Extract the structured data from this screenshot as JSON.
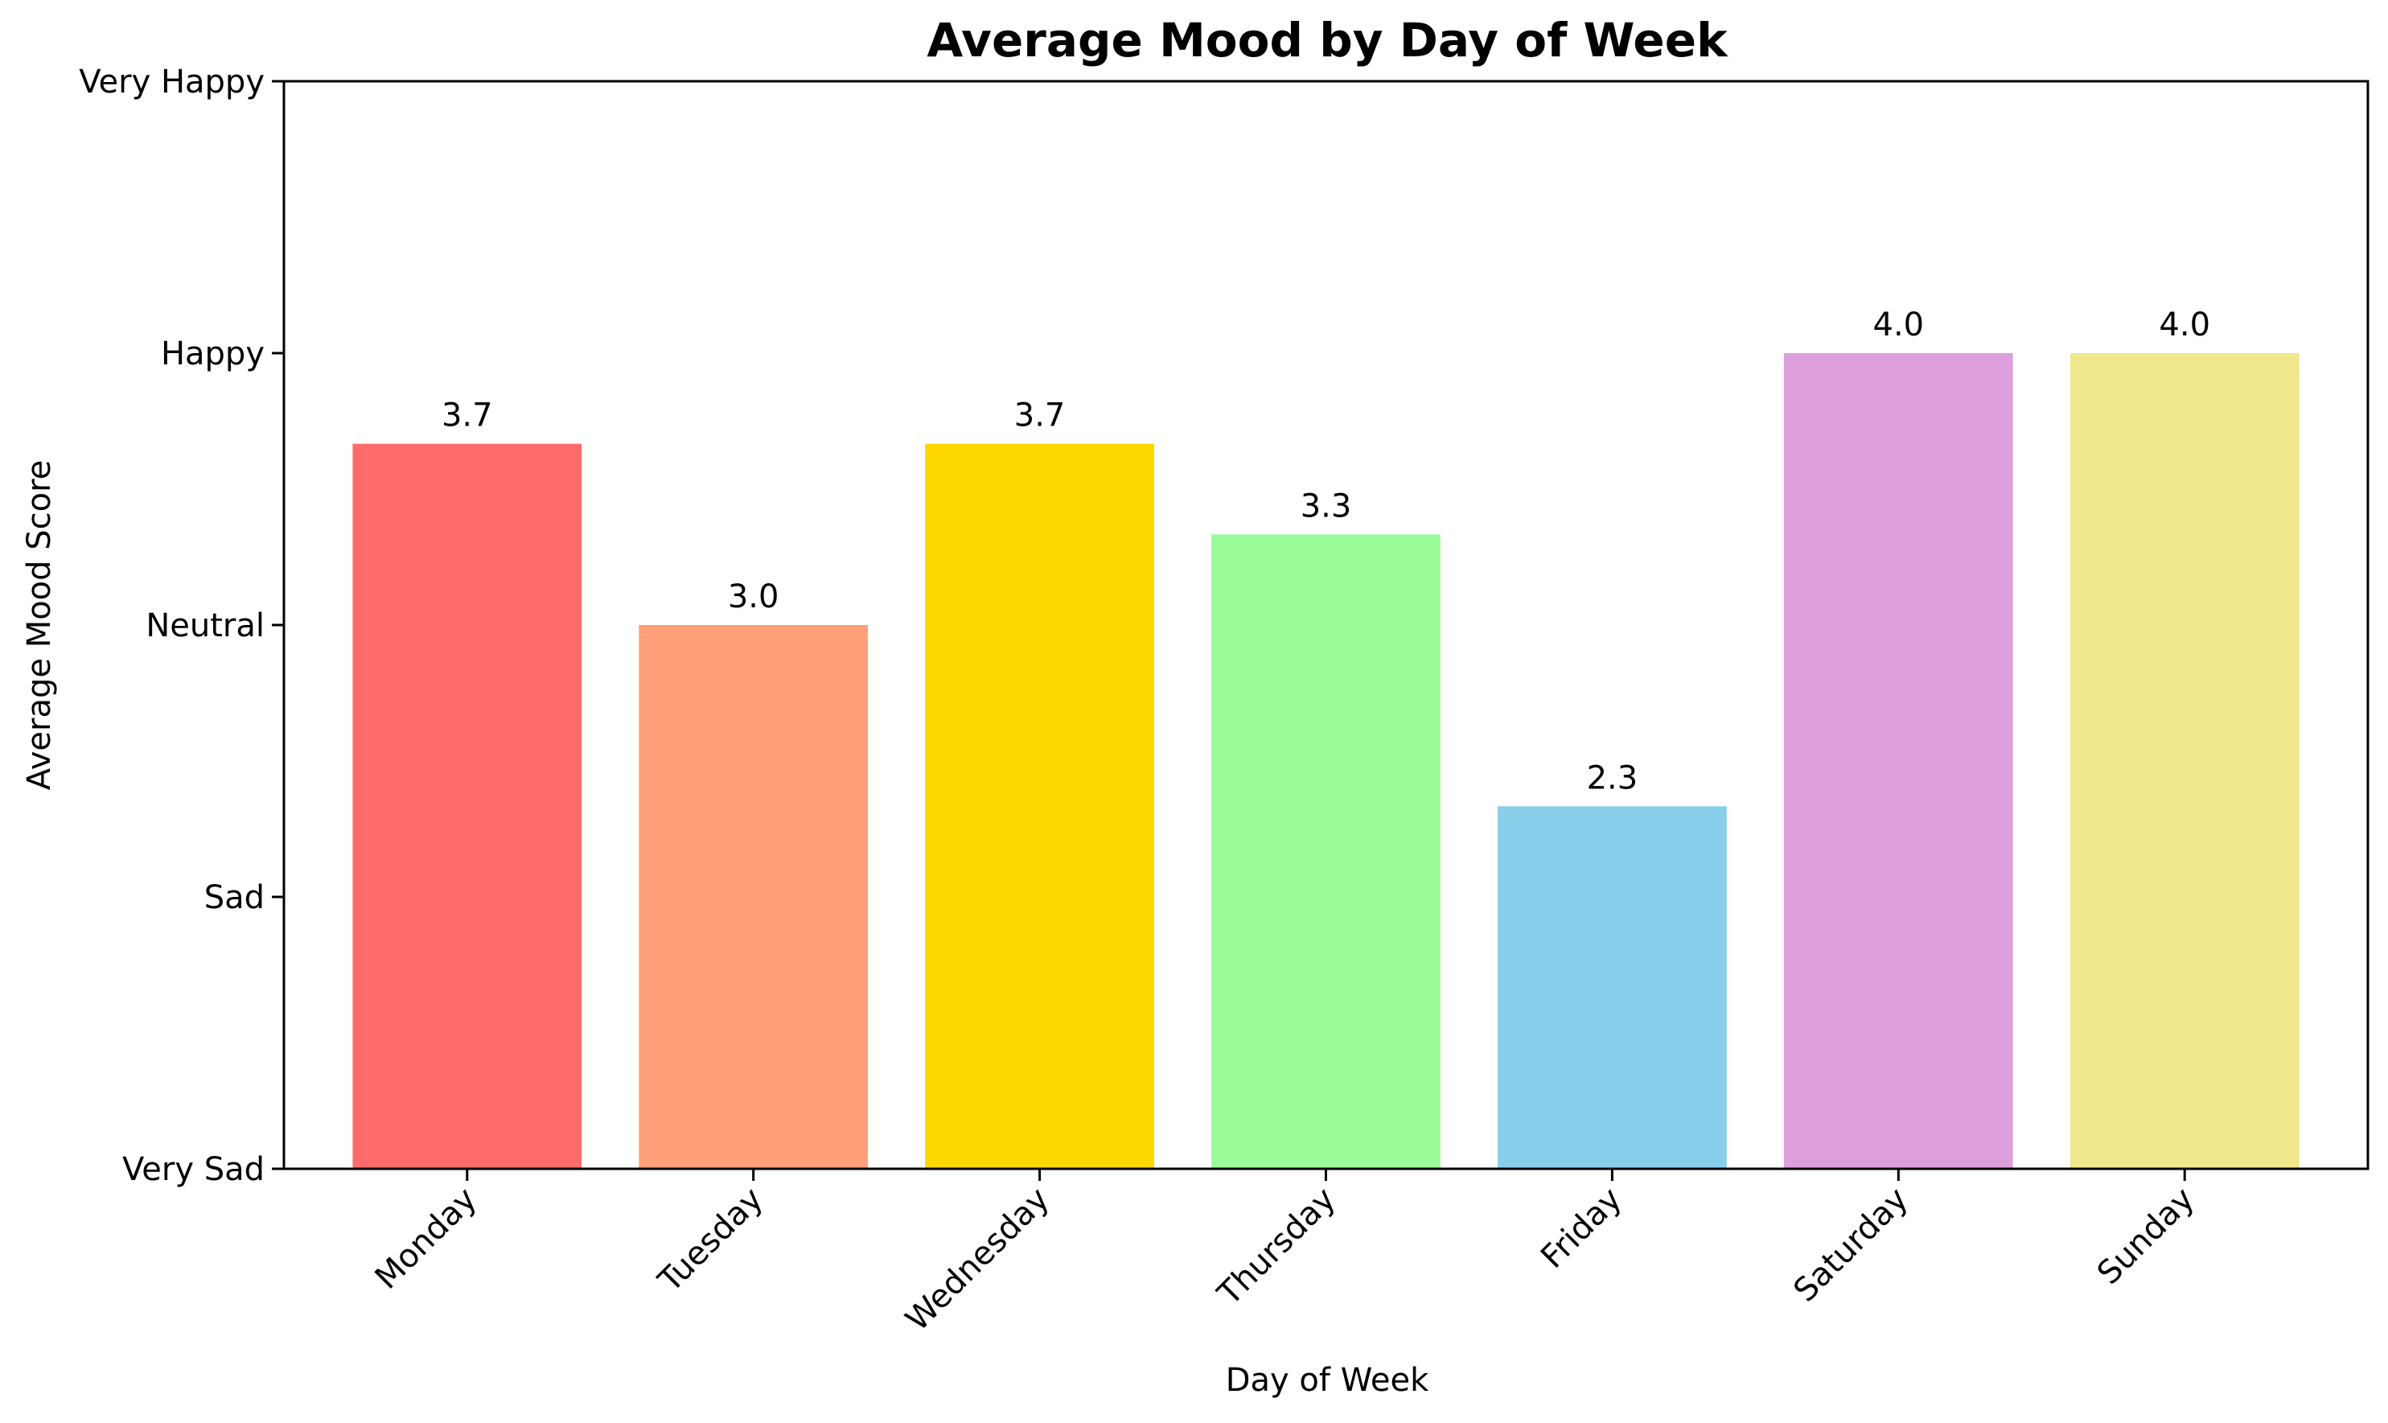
{
  "chart_data": {
    "type": "bar",
    "title": "Average Mood by Day of Week",
    "xlabel": "Day of Week",
    "ylabel": "Average Mood Score",
    "categories": [
      "Monday",
      "Tuesday",
      "Wednesday",
      "Thursday",
      "Friday",
      "Saturday",
      "Sunday"
    ],
    "values": [
      3.6667,
      3.0,
      3.6667,
      3.3333,
      2.3333,
      4.0,
      4.0
    ],
    "value_labels": [
      "3.7",
      "3.0",
      "3.7",
      "3.3",
      "2.3",
      "4.0",
      "4.0"
    ],
    "colors": [
      "#FF6B6B",
      "#FFA07A",
      "#FFD700",
      "#98FB98",
      "#87CEEB",
      "#DDA0DD",
      "#F0E68C"
    ],
    "ylim": [
      1,
      5
    ],
    "yticks": [
      1,
      2,
      3,
      4,
      5
    ],
    "ytick_labels": [
      "Very Sad",
      "Sad",
      "Neutral",
      "Happy",
      "Very Happy"
    ],
    "grid": false,
    "legend": "none"
  }
}
